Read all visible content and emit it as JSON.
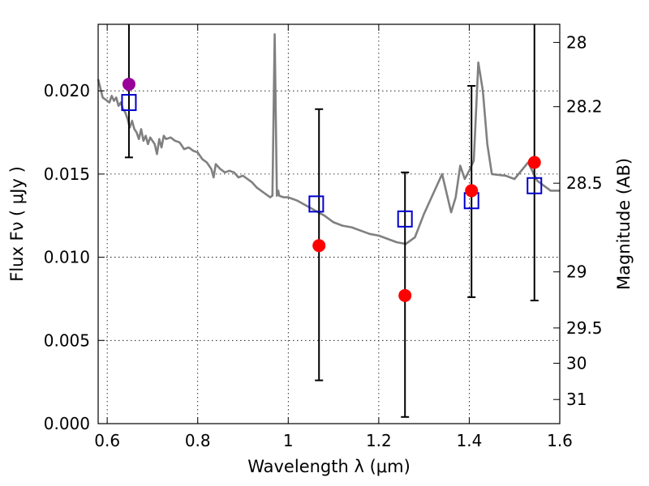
{
  "chart_data": {
    "type": "scatter",
    "xlabel": "Wavelength  λ (μm)",
    "ylabel": "Flux  Fν  ( μJy )",
    "ylabel_right": "Magnitude (AB)",
    "xlim": [
      0.58,
      1.6
    ],
    "ylim": [
      0.0,
      0.024
    ],
    "grid": true,
    "x_ticks": [
      0.6,
      0.8,
      1.0,
      1.2,
      1.4,
      1.6
    ],
    "x_tick_labels": [
      "0.6",
      "0.8",
      "1",
      "1.2",
      "1.4",
      "1.6"
    ],
    "y_ticks": [
      0.0,
      0.005,
      0.01,
      0.015,
      0.02
    ],
    "y_tick_labels": [
      "0.000",
      "0.005",
      "0.010",
      "0.015",
      "0.020"
    ],
    "right_ticks": [
      {
        "label": "28",
        "flux": 0.02291
      },
      {
        "label": "28.2",
        "flux": 0.01905
      },
      {
        "label": "28.5",
        "flux": 0.01445
      },
      {
        "label": "29",
        "flux": 0.00912
      },
      {
        "label": "29.5",
        "flux": 0.00575
      },
      {
        "label": "30",
        "flux": 0.00363
      },
      {
        "label": "31",
        "flux": 0.00145
      }
    ],
    "colors": {
      "model": "#808080",
      "observed": "#ff0000",
      "observed_first": "#990099",
      "model_band": "#0000cc",
      "errorbar": "#000000"
    },
    "model_spectrum": {
      "x": [
        0.58,
        0.59,
        0.6,
        0.605,
        0.61,
        0.615,
        0.62,
        0.625,
        0.63,
        0.635,
        0.64,
        0.645,
        0.65,
        0.655,
        0.66,
        0.665,
        0.67,
        0.675,
        0.68,
        0.685,
        0.69,
        0.695,
        0.7,
        0.705,
        0.71,
        0.715,
        0.72,
        0.725,
        0.73,
        0.74,
        0.75,
        0.76,
        0.77,
        0.78,
        0.79,
        0.8,
        0.81,
        0.82,
        0.83,
        0.835,
        0.84,
        0.85,
        0.86,
        0.87,
        0.88,
        0.89,
        0.9,
        0.91,
        0.92,
        0.93,
        0.94,
        0.95,
        0.96,
        0.965,
        0.97,
        0.975,
        0.978,
        0.98,
        0.99,
        1.0,
        1.02,
        1.04,
        1.06,
        1.08,
        1.1,
        1.12,
        1.14,
        1.16,
        1.18,
        1.2,
        1.22,
        1.24,
        1.26,
        1.28,
        1.3,
        1.32,
        1.34,
        1.36,
        1.37,
        1.38,
        1.39,
        1.4,
        1.41,
        1.42,
        1.43,
        1.44,
        1.45,
        1.48,
        1.5,
        1.53,
        1.55,
        1.58,
        1.6
      ],
      "y": [
        0.0207,
        0.0196,
        0.0194,
        0.0193,
        0.0197,
        0.0194,
        0.0196,
        0.0191,
        0.0193,
        0.0189,
        0.0187,
        0.0183,
        0.0178,
        0.0182,
        0.0177,
        0.0175,
        0.0171,
        0.0177,
        0.017,
        0.0173,
        0.0168,
        0.0172,
        0.017,
        0.0168,
        0.0162,
        0.0171,
        0.0166,
        0.0173,
        0.0171,
        0.0172,
        0.017,
        0.0169,
        0.0165,
        0.0166,
        0.0164,
        0.0163,
        0.0159,
        0.0157,
        0.0153,
        0.0148,
        0.0156,
        0.0153,
        0.0151,
        0.0152,
        0.0151,
        0.0148,
        0.0149,
        0.0147,
        0.0145,
        0.0142,
        0.014,
        0.0138,
        0.0136,
        0.0137,
        0.0234,
        0.0137,
        0.014,
        0.0137,
        0.0136,
        0.0136,
        0.0134,
        0.0131,
        0.0128,
        0.0125,
        0.0121,
        0.0119,
        0.0118,
        0.0116,
        0.0114,
        0.0113,
        0.0111,
        0.0109,
        0.0108,
        0.0112,
        0.0126,
        0.0138,
        0.015,
        0.0127,
        0.0136,
        0.0155,
        0.0147,
        0.0152,
        0.0158,
        0.0217,
        0.02,
        0.0168,
        0.015,
        0.0149,
        0.0147,
        0.0157,
        0.0146,
        0.014,
        0.014
      ]
    },
    "observed": {
      "x": [
        0.648,
        1.068,
        1.258,
        1.405,
        1.544
      ],
      "y": [
        0.0204,
        0.0107,
        0.0077,
        0.014,
        0.0157
      ],
      "yerr_low": [
        0.0044,
        0.0081,
        0.0073,
        0.0064,
        0.0083
      ],
      "yerr_high": [
        0.004,
        0.0082,
        0.0074,
        0.0063,
        0.0083
      ]
    },
    "model_bands": {
      "x": [
        0.648,
        1.062,
        1.258,
        1.405,
        1.544
      ],
      "y": [
        0.0193,
        0.0132,
        0.0123,
        0.0134,
        0.0143
      ]
    }
  }
}
